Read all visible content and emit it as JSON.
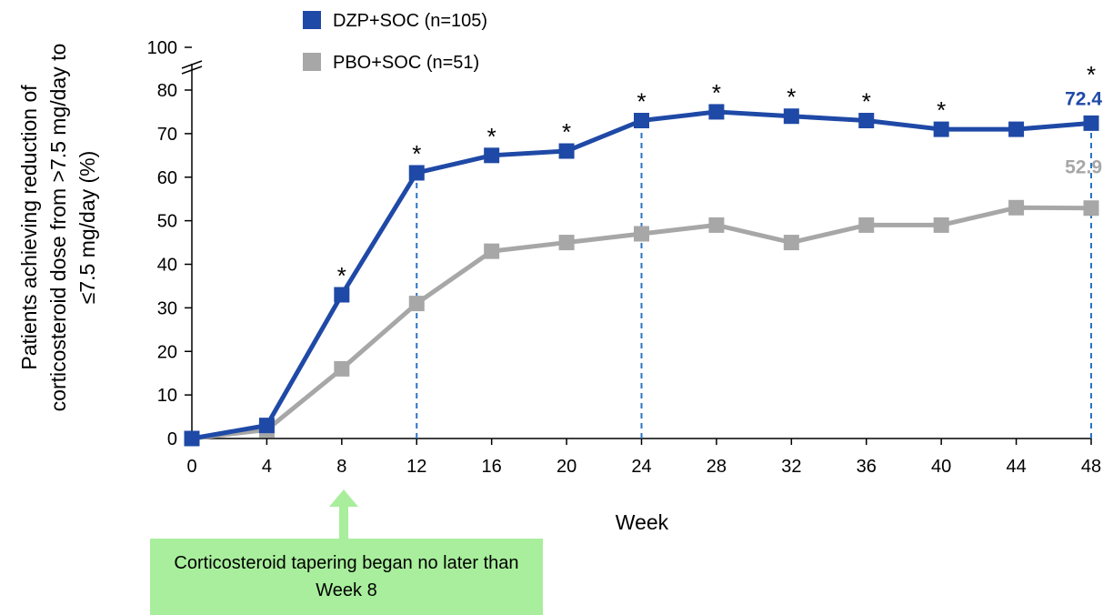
{
  "chart_data": {
    "type": "line",
    "xlabel": "Week",
    "ylabel_lines": [
      "Patients achieving reduction of",
      "corticosteroid dose from >7.5 mg/day to",
      "≤7.5 mg/day (%)"
    ],
    "x": [
      0,
      4,
      8,
      12,
      16,
      20,
      24,
      28,
      32,
      36,
      40,
      44,
      48
    ],
    "xlim": [
      0,
      48
    ],
    "ylim": [
      0,
      80
    ],
    "y_ticks": [
      0,
      10,
      20,
      30,
      40,
      50,
      60,
      70,
      80,
      100
    ],
    "y_axis_break": "between 80 and 100",
    "series": [
      {
        "name": "DZP+SOC (n=105)",
        "color": "#1f49a6",
        "values": [
          0,
          3,
          33,
          61,
          65,
          66,
          73,
          75,
          74,
          73,
          71,
          71,
          72.4
        ],
        "significance_star_weeks": [
          8,
          12,
          16,
          20,
          24,
          28,
          32,
          36,
          40,
          48
        ],
        "end_label": "72.4"
      },
      {
        "name": "PBO+SOC (n=51)",
        "color": "#a7a7a7",
        "values": [
          0,
          2,
          16,
          31,
          43,
          45,
          47,
          49,
          45,
          49,
          49,
          53,
          52.9
        ],
        "end_label": "52.9"
      }
    ],
    "reference_lines_weeks": [
      12,
      24,
      48
    ],
    "star_symbol": "*",
    "legend_position": "top"
  },
  "callout": {
    "text": "Corticosteroid tapering began no later than Week 8",
    "points_to_week": 8,
    "color": "#a8ee9c"
  }
}
